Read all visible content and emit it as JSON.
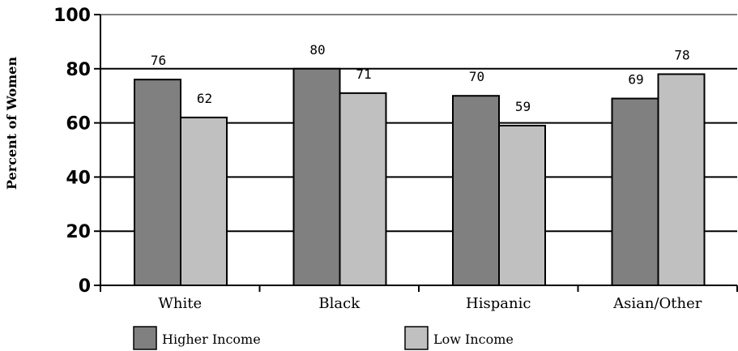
{
  "chart_data": {
    "type": "bar",
    "title": "",
    "xlabel": "",
    "ylabel": "Percent of Women",
    "ylim": [
      0,
      100
    ],
    "yticks": [
      0,
      20,
      40,
      60,
      80,
      100
    ],
    "grid": "horizontal",
    "legend_position": "bottom",
    "categories": [
      "White",
      "Black",
      "Hispanic",
      "Asian/Other"
    ],
    "series": [
      {
        "name": "Higher Income",
        "color": "#808080",
        "values": [
          76,
          80,
          70,
          69
        ]
      },
      {
        "name": "Low Income",
        "color": "#c0c0c0",
        "values": [
          62,
          71,
          59,
          78
        ]
      }
    ]
  }
}
